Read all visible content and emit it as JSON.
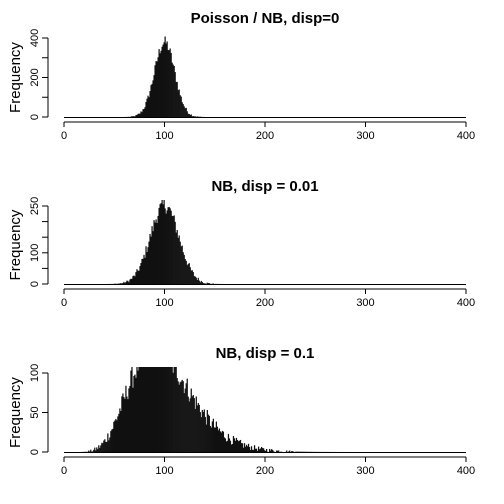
{
  "chart_data": [
    {
      "type": "bar",
      "title": "Poisson / NB, disp=0",
      "ylabel": "Frequency",
      "xlim": [
        0,
        400
      ],
      "ylim": [
        0,
        400
      ],
      "xticks": [
        0,
        100,
        200,
        300,
        400
      ],
      "yticks": [
        0,
        100,
        200,
        300,
        400
      ],
      "ytick_labels": [
        "0",
        "",
        "200",
        "",
        "400"
      ],
      "bin_width": 1,
      "dist": {
        "mean": 100,
        "sd": 10,
        "peak": 420
      },
      "bin_counts": []
    },
    {
      "type": "bar",
      "title": "NB, disp = 0.01",
      "ylabel": "Frequency",
      "xlim": [
        0,
        400
      ],
      "ylim": [
        0,
        250
      ],
      "xticks": [
        0,
        100,
        200,
        300,
        400
      ],
      "yticks": [
        0,
        50,
        100,
        150,
        200,
        250
      ],
      "ytick_labels": [
        "0",
        "",
        "100",
        "",
        "",
        "250"
      ],
      "bin_width": 1,
      "dist": {
        "mean": 100,
        "sd": 14.1,
        "peak": 280
      },
      "bin_counts": []
    },
    {
      "type": "bar",
      "title": "NB, disp = 0.1",
      "ylabel": "Frequency",
      "xlim": [
        0,
        400
      ],
      "ylim": [
        0,
        100
      ],
      "xticks": [
        0,
        100,
        200,
        300,
        400
      ],
      "yticks": [
        0,
        50,
        100
      ],
      "ytick_labels": [
        "0",
        "50",
        "100"
      ],
      "bin_width": 1,
      "dist": {
        "shape": 10,
        "scale": 10,
        "peak": 145
      },
      "bin_counts": []
    }
  ]
}
